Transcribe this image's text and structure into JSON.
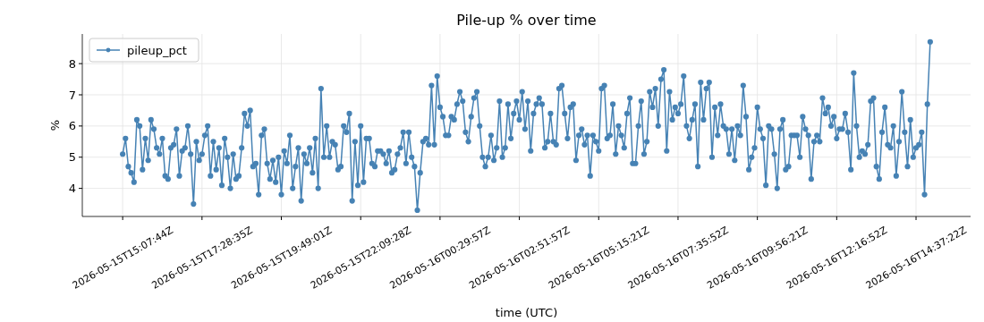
{
  "chart_data": {
    "type": "line",
    "title": "Pile-up % over time",
    "xlabel": "time (UTC)",
    "ylabel": "%",
    "categories": [
      "2026-05-15T15:07:44Z",
      null,
      null,
      null,
      null,
      null,
      null,
      null,
      null,
      null,
      null,
      null,
      null,
      null,
      null,
      null,
      null,
      null,
      null,
      null,
      null,
      null,
      null,
      null,
      null,
      null,
      null,
      null,
      "2026-05-15T17:28:35Z",
      null,
      null,
      null,
      null,
      null,
      null,
      null,
      null,
      null,
      null,
      null,
      null,
      null,
      null,
      null,
      null,
      null,
      null,
      null,
      null,
      null,
      null,
      null,
      null,
      null,
      null,
      null,
      "2026-05-15T19:49:01Z",
      null,
      null,
      null,
      null,
      null,
      null,
      null,
      null,
      null,
      null,
      null,
      null,
      null,
      null,
      null,
      null,
      null,
      null,
      null,
      null,
      null,
      null,
      null,
      null,
      null,
      null,
      null,
      "2026-05-15T22:09:28Z",
      null,
      null,
      null,
      null,
      null,
      null,
      null,
      null,
      null,
      null,
      null,
      null,
      null,
      null,
      null,
      null,
      null,
      null,
      null,
      null,
      null,
      null,
      null,
      null,
      null,
      null,
      null,
      "2026-05-16T00:29:57Z",
      null,
      null,
      null,
      null,
      null,
      null,
      null,
      null,
      null,
      null,
      null,
      null,
      null,
      null,
      null,
      null,
      null,
      null,
      null,
      null,
      null,
      null,
      null,
      null,
      null,
      null,
      null,
      "2026-05-16T02:51:57Z",
      null,
      null,
      null,
      null,
      null,
      null,
      null,
      null,
      null,
      null,
      null,
      null,
      null,
      null,
      null,
      null,
      null,
      null,
      null,
      null,
      null,
      null,
      null,
      null,
      null,
      null,
      null,
      "2026-05-16T05:15:21Z",
      null,
      null,
      null,
      null,
      null,
      null,
      null,
      null,
      null,
      null,
      null,
      null,
      null,
      null,
      null,
      null,
      null,
      null,
      null,
      null,
      null,
      null,
      null,
      null,
      null,
      null,
      null,
      "2026-05-16T07:35:52Z",
      null,
      null,
      null,
      null,
      null,
      null,
      null,
      null,
      null,
      null,
      null,
      null,
      null,
      null,
      null,
      null,
      null,
      null,
      null,
      null,
      null,
      null,
      null,
      null,
      null,
      null,
      null,
      "2026-05-16T09:56:21Z",
      null,
      null,
      null,
      null,
      null,
      null,
      null,
      null,
      null,
      null,
      null,
      null,
      null,
      null,
      null,
      null,
      null,
      null,
      null,
      null,
      null,
      null,
      null,
      null,
      null,
      null,
      null,
      "2026-05-16T12:16:52Z",
      null,
      null,
      null,
      null,
      null,
      null,
      null,
      null,
      null,
      null,
      null,
      null,
      null,
      null,
      null,
      null,
      null,
      null,
      null,
      null,
      null,
      null,
      null,
      null,
      null,
      null,
      null,
      "2026-05-16T14:37:22Z",
      null,
      null,
      null,
      null,
      null
    ],
    "series": [
      {
        "name": "pileup_pct",
        "color": "#4682b4",
        "values": [
          5.1,
          5.6,
          4.7,
          4.5,
          4.2,
          6.2,
          6.0,
          4.6,
          5.6,
          4.9,
          6.2,
          5.9,
          5.3,
          5.1,
          5.6,
          4.4,
          4.3,
          5.3,
          5.4,
          5.9,
          4.4,
          5.2,
          5.3,
          6.0,
          5.1,
          3.5,
          5.5,
          4.9,
          5.1,
          5.7,
          6.0,
          4.4,
          5.5,
          4.6,
          5.3,
          4.1,
          5.6,
          5.0,
          4.0,
          5.1,
          4.3,
          4.4,
          5.3,
          6.4,
          6.0,
          6.5,
          4.7,
          4.8,
          3.8,
          5.7,
          5.9,
          4.8,
          4.3,
          4.9,
          4.2,
          5.0,
          3.8,
          5.2,
          4.8,
          5.7,
          4.0,
          4.7,
          5.3,
          3.6,
          5.1,
          4.8,
          5.3,
          4.5,
          5.6,
          4.0,
          7.2,
          5.0,
          6.0,
          5.0,
          5.5,
          5.4,
          4.6,
          4.7,
          6.0,
          5.8,
          6.4,
          3.6,
          5.5,
          4.1,
          6.0,
          4.2,
          5.6,
          5.6,
          4.8,
          4.7,
          5.2,
          5.2,
          5.1,
          4.8,
          5.2,
          4.5,
          4.6,
          5.1,
          5.3,
          5.8,
          4.8,
          5.8,
          5.0,
          4.7,
          3.3,
          4.5,
          5.5,
          5.6,
          5.4,
          7.3,
          5.4,
          7.6,
          6.6,
          6.3,
          5.7,
          5.7,
          6.3,
          6.2,
          6.7,
          7.1,
          6.8,
          5.8,
          5.5,
          6.3,
          6.9,
          7.1,
          6.0,
          5.0,
          4.7,
          5.0,
          5.7,
          4.9,
          5.3,
          6.8,
          5.0,
          5.3,
          6.7,
          5.6,
          6.4,
          6.8,
          6.2,
          7.1,
          5.9,
          6.8,
          5.2,
          6.4,
          6.7,
          6.9,
          6.7,
          5.3,
          5.5,
          6.4,
          5.5,
          5.4,
          7.2,
          7.3,
          6.4,
          5.6,
          6.6,
          6.7,
          4.9,
          5.7,
          5.9,
          5.4,
          5.7,
          4.4,
          5.7,
          5.5,
          5.2,
          7.2,
          7.3,
          5.6,
          5.7,
          6.7,
          5.1,
          6.0,
          5.7,
          5.3,
          6.4,
          6.9,
          4.8,
          4.8,
          6.0,
          6.8,
          5.1,
          5.5,
          7.1,
          6.6,
          7.2,
          6.0,
          7.5,
          7.8,
          5.2,
          7.1,
          6.2,
          6.6,
          6.4,
          6.7,
          7.6,
          6.0,
          5.6,
          6.2,
          6.7,
          4.7,
          7.4,
          6.2,
          7.2,
          7.4,
          5.0,
          6.6,
          5.7,
          6.7,
          6.0,
          5.9,
          5.1,
          5.9,
          4.9,
          6.0,
          5.7,
          7.3,
          6.3,
          4.6,
          5.0,
          5.3,
          6.6,
          5.9,
          5.6,
          4.1,
          6.0,
          5.9,
          5.1,
          4.0,
          5.9,
          6.2,
          4.6,
          4.7,
          5.7,
          5.7,
          5.7,
          5.0,
          6.3,
          5.9,
          5.7,
          4.3,
          5.5,
          5.7,
          5.5,
          6.9,
          6.4,
          6.6,
          6.0,
          6.3,
          5.6,
          5.9,
          5.9,
          6.4,
          5.8,
          4.6,
          7.7,
          6.0,
          5.0,
          5.2,
          5.1,
          5.4,
          6.8,
          6.9,
          4.7,
          4.3,
          5.8,
          6.6,
          5.4,
          5.3,
          6.0,
          4.4,
          5.5,
          7.1,
          5.8,
          4.7,
          6.2,
          5.0,
          5.3,
          5.4,
          5.8,
          3.8,
          6.7,
          8.7
        ]
      }
    ],
    "ylim": [
      3.1,
      8.95
    ],
    "yticks": [
      4,
      5,
      6,
      7,
      8
    ],
    "grid": true,
    "legend": "top left",
    "marker": "circle",
    "line_style": "solid"
  }
}
